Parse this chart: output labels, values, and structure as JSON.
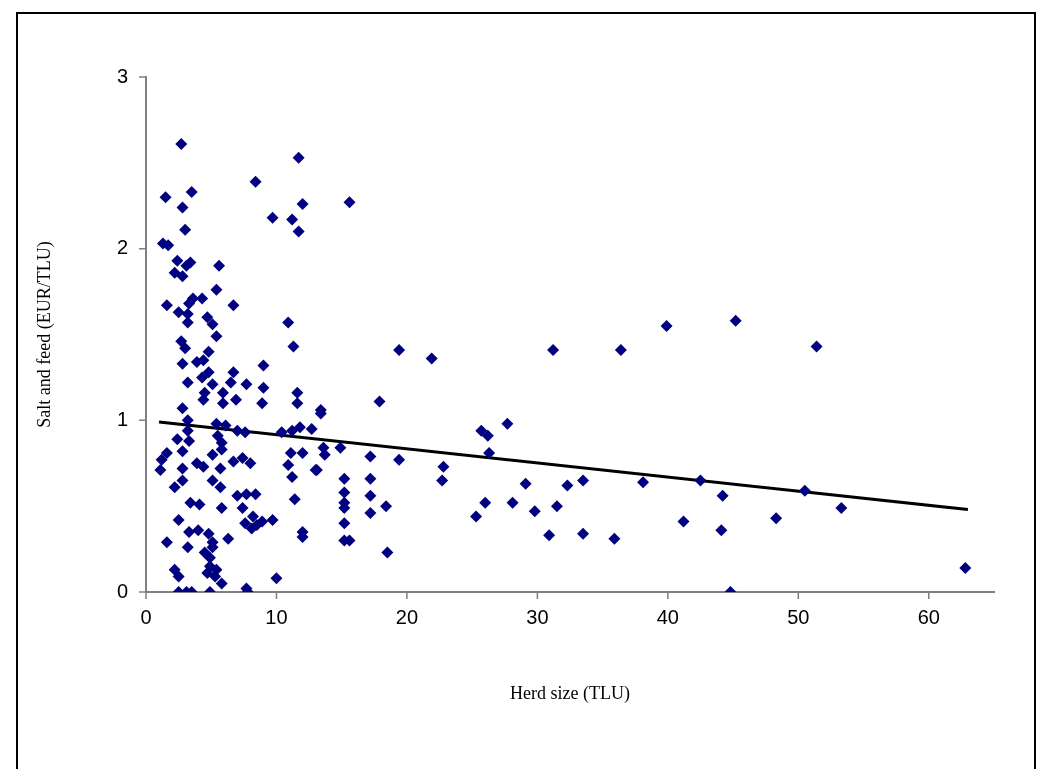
{
  "chart_data": {
    "type": "scatter",
    "xlabel": "Herd size (TLU)",
    "ylabel": "Salt and feed (EUR/TLU)",
    "xlim": [
      0,
      65
    ],
    "ylim": [
      0,
      3
    ],
    "xticks": [
      0,
      10,
      20,
      30,
      40,
      50,
      60
    ],
    "yticks": [
      0,
      1,
      2,
      3
    ],
    "grid": false,
    "legend": false,
    "marker": "diamond",
    "series": [
      {
        "color": "#000080",
        "x": [
          2.7,
          11.7,
          8.4,
          3.5,
          1.5,
          2.8,
          12.0,
          9.7,
          11.2,
          11.7,
          3.0,
          1.3,
          1.7,
          2.4,
          3.4,
          3.1,
          5.6,
          2.2,
          2.8,
          5.4,
          3.6,
          4.3,
          1.6,
          3.3,
          6.7,
          2.5,
          3.2,
          3.2,
          4.7,
          5.1,
          10.9,
          5.4,
          2.7,
          3.0,
          11.3,
          4.8,
          2.8,
          3.9,
          4.4,
          9.0,
          6.7,
          4.8,
          4.3,
          3.2,
          6.5,
          5.1,
          7.7,
          9.0,
          11.6,
          4.5,
          5.9,
          4.4,
          5.9,
          6.9,
          8.9,
          11.6,
          2.8,
          3.2,
          5.4,
          6.1,
          5.5,
          7.0,
          7.6,
          10.4,
          11.2,
          11.8,
          12.7,
          3.2,
          2.4,
          3.3,
          2.8,
          5.8,
          5.8,
          1.6,
          1.2,
          1.1,
          5.1,
          12.0,
          11.1,
          3.9,
          4.4,
          6.7,
          7.4,
          8.0,
          10.9,
          2.8,
          5.7,
          11.2,
          13.0,
          2.8,
          5.1,
          2.2,
          5.7,
          7.0,
          7.7,
          8.4,
          11.4,
          3.4,
          4.1,
          5.8,
          7.4,
          2.5,
          9.7,
          7.6,
          8.2,
          8.5,
          8.9,
          8.1,
          3.3,
          4.0,
          4.8,
          12.0,
          12.0,
          6.3,
          1.6,
          3.2,
          5.1,
          5.1,
          4.5,
          4.9,
          4.9,
          2.2,
          2.5,
          5.4,
          4.7,
          5.3,
          5.8,
          10.0,
          2.5,
          3.1,
          3.5,
          4.9,
          7.7,
          7.8,
          15.6,
          15.6,
          14.9,
          13.6,
          13.7,
          13.1,
          13.4,
          13.4,
          15.2,
          15.2,
          15.2,
          15.2,
          15.2,
          15.2,
          17.2,
          17.2,
          17.2,
          17.2,
          18.5,
          18.4,
          17.9,
          19.4,
          19.4,
          21.9,
          22.8,
          22.7,
          25.3,
          25.7,
          26.2,
          26.3,
          26.0,
          27.7,
          28.1,
          29.1,
          29.8,
          30.9,
          31.2,
          31.5,
          32.3,
          33.5,
          33.5,
          35.9,
          36.4,
          38.1,
          39.9,
          45.2,
          51.4,
          53.3,
          50.5,
          48.3,
          44.1,
          44.2,
          42.5,
          41.2,
          44.8,
          62.8
        ],
        "values": [
          2.61,
          2.53,
          2.39,
          2.33,
          2.3,
          2.24,
          2.26,
          2.18,
          2.17,
          2.1,
          2.11,
          2.03,
          2.02,
          1.93,
          1.92,
          1.9,
          1.9,
          1.86,
          1.84,
          1.76,
          1.71,
          1.71,
          1.67,
          1.68,
          1.67,
          1.63,
          1.62,
          1.57,
          1.6,
          1.56,
          1.57,
          1.49,
          1.46,
          1.42,
          1.43,
          1.4,
          1.33,
          1.34,
          1.35,
          1.32,
          1.28,
          1.28,
          1.25,
          1.22,
          1.22,
          1.21,
          1.21,
          1.19,
          1.16,
          1.16,
          1.16,
          1.12,
          1.1,
          1.12,
          1.1,
          1.1,
          1.07,
          1.0,
          0.98,
          0.97,
          0.91,
          0.94,
          0.93,
          0.93,
          0.94,
          0.96,
          0.95,
          0.94,
          0.89,
          0.88,
          0.82,
          0.87,
          0.83,
          0.81,
          0.77,
          0.71,
          0.8,
          0.81,
          0.81,
          0.75,
          0.73,
          0.76,
          0.78,
          0.75,
          0.74,
          0.72,
          0.72,
          0.67,
          0.71,
          0.65,
          0.65,
          0.61,
          0.61,
          0.56,
          0.57,
          0.57,
          0.54,
          0.52,
          0.51,
          0.49,
          0.49,
          0.42,
          0.42,
          0.4,
          0.44,
          0.39,
          0.41,
          0.37,
          0.35,
          0.36,
          0.34,
          0.35,
          0.32,
          0.31,
          0.29,
          0.26,
          0.29,
          0.26,
          0.23,
          0.2,
          0.15,
          0.13,
          0.09,
          0.13,
          0.11,
          0.09,
          0.05,
          0.08,
          0,
          0,
          0,
          0,
          0.02,
          0,
          2.27,
          0.3,
          0.84,
          0.84,
          0.8,
          0.71,
          1.06,
          1.04,
          0.66,
          0.58,
          0.52,
          0.49,
          0.4,
          0.3,
          0.79,
          0.66,
          0.56,
          0.46,
          0.23,
          0.5,
          1.11,
          1.41,
          0.77,
          1.36,
          0.73,
          0.65,
          0.44,
          0.94,
          0.91,
          0.81,
          0.52,
          0.98,
          0.52,
          0.63,
          0.47,
          0.33,
          1.41,
          0.5,
          0.62,
          0.65,
          0.34,
          0.31,
          1.41,
          0.64,
          1.55,
          1.58,
          1.43,
          0.49,
          0.59,
          0.43,
          0.36,
          0.56,
          0.65,
          0.41,
          0,
          0.14
        ]
      },
      {
        "type": "line",
        "color": "#000000",
        "x": [
          1,
          63
        ],
        "values": [
          0.99,
          0.48
        ],
        "marker": "none"
      }
    ]
  }
}
